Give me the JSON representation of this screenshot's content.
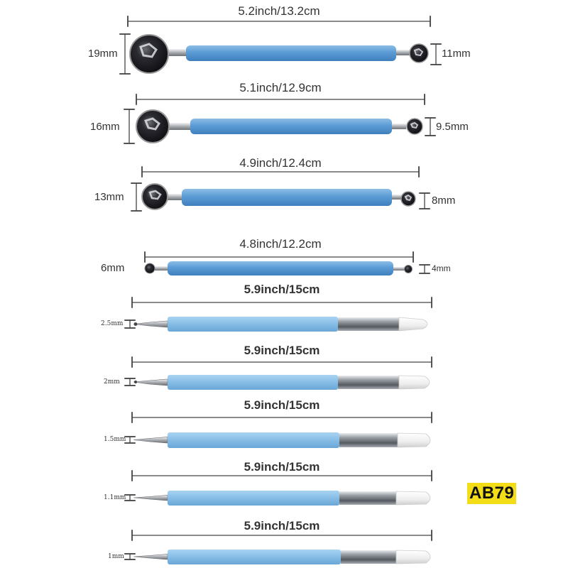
{
  "dotting_tools": [
    {
      "length": "5.2inch/13.2cm",
      "left_size": "19mm",
      "right_size": "11mm"
    },
    {
      "length": "5.1inch/12.9cm",
      "left_size": "16mm",
      "right_size": "9.5mm"
    },
    {
      "length": "4.9inch/12.4cm",
      "left_size": "13mm",
      "right_size": "8mm"
    },
    {
      "length": "4.8inch/12.2cm",
      "left_size": "6mm",
      "right_size": "4mm"
    }
  ],
  "silicone_tools": [
    {
      "length": "5.9inch/15cm",
      "tip_size": "2.5mm"
    },
    {
      "length": "5.9inch/15cm",
      "tip_size": "2mm"
    },
    {
      "length": "5.9inch/15cm",
      "tip_size": "1.5mm"
    },
    {
      "length": "5.9inch/15cm",
      "tip_size": "1.1mm"
    },
    {
      "length": "5.9inch/15cm",
      "tip_size": "1mm"
    }
  ],
  "watermark": "AB79",
  "colors": {
    "handle": "#5b9bd5",
    "handle_light": "#8fc2ea",
    "ball": "#1c1c22",
    "metal": "#b8bcc0",
    "silicone": "#f2f2f2"
  }
}
